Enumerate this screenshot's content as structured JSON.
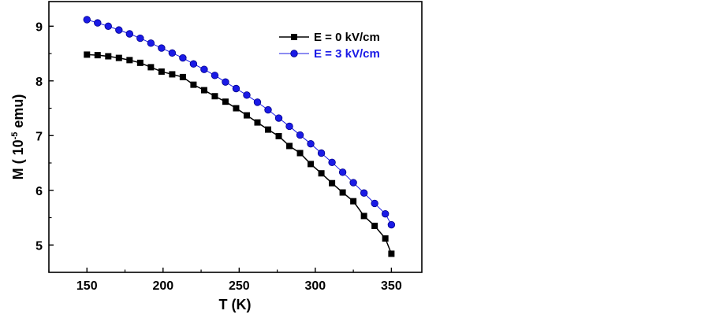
{
  "chart_data": {
    "type": "line",
    "xlabel": "T (K)",
    "ylabel": "M ( 10",
    "ylabel_exp": "-5",
    "ylabel_tail": " emu)",
    "xlim": [
      125,
      370
    ],
    "ylim": [
      4.5,
      9.45
    ],
    "xticks": [
      150,
      200,
      250,
      300,
      350
    ],
    "yticks": [
      5,
      6,
      7,
      8,
      9
    ],
    "x": [
      150,
      157,
      164,
      171,
      178,
      185,
      192,
      199,
      206,
      213,
      220,
      227,
      234,
      241,
      248,
      255,
      262,
      269,
      276,
      283,
      290,
      297,
      304,
      311,
      318,
      325,
      332,
      339,
      346,
      350
    ],
    "series": [
      {
        "name": "E = 0 kV/cm",
        "color": "#000000",
        "marker": "square",
        "values": [
          8.48,
          8.47,
          8.45,
          8.42,
          8.38,
          8.33,
          8.25,
          8.17,
          8.12,
          8.07,
          7.93,
          7.83,
          7.72,
          7.62,
          7.5,
          7.37,
          7.24,
          7.11,
          6.99,
          6.81,
          6.68,
          6.48,
          6.31,
          6.13,
          5.96,
          5.8,
          5.53,
          5.35,
          5.12,
          4.84
        ]
      },
      {
        "name": "E = 3 kV/cm",
        "color": "#1a1ae6",
        "marker": "circle",
        "values": [
          9.12,
          9.06,
          9.0,
          8.93,
          8.86,
          8.78,
          8.69,
          8.6,
          8.51,
          8.42,
          8.31,
          8.21,
          8.1,
          7.98,
          7.86,
          7.74,
          7.61,
          7.47,
          7.32,
          7.17,
          7.01,
          6.85,
          6.68,
          6.51,
          6.33,
          6.14,
          5.95,
          5.76,
          5.57,
          5.37
        ]
      }
    ],
    "legend": "top-right",
    "grid": false
  }
}
